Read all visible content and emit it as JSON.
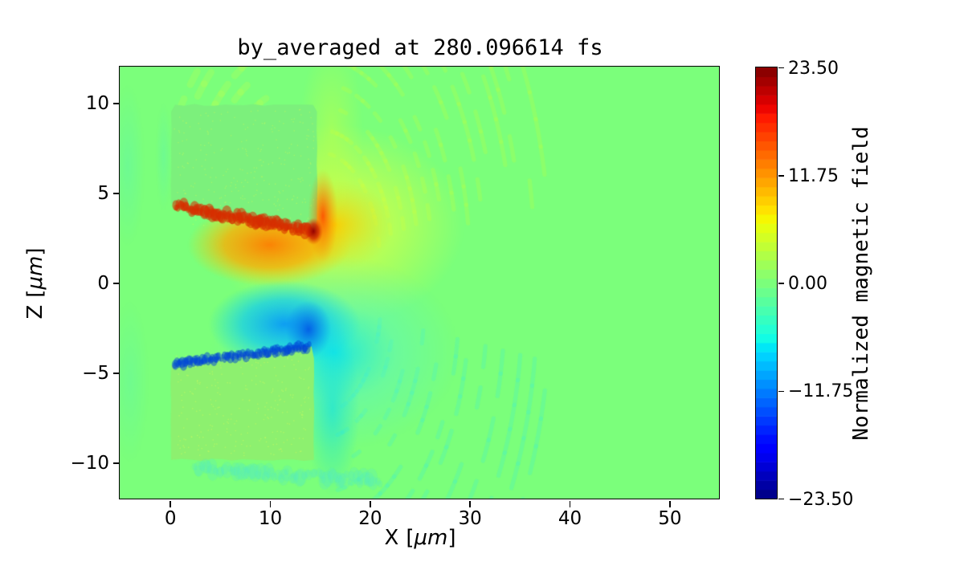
{
  "figure": {
    "title": "by_averaged at 280.096614 fs",
    "background_color": "#ffffff"
  },
  "chart_data": {
    "type": "heatmap",
    "title": "by_averaged at 280.096614 fs",
    "xlabel": {
      "name": "X",
      "open": "[",
      "unit": "μm",
      "close": "]",
      "text": "X [μm]"
    },
    "ylabel": {
      "name": "Z",
      "open": "[",
      "unit": "μm",
      "close": "]",
      "text": "Z [μm]"
    },
    "xlim": [
      -5,
      55
    ],
    "ylim": [
      -12,
      12
    ],
    "grid": false,
    "x_ticks": [
      {
        "value": 0,
        "label": "0"
      },
      {
        "value": 10,
        "label": "10"
      },
      {
        "value": 20,
        "label": "20"
      },
      {
        "value": 30,
        "label": "30"
      },
      {
        "value": 40,
        "label": "40"
      },
      {
        "value": 50,
        "label": "50"
      }
    ],
    "y_ticks": [
      {
        "value": 10,
        "label": "10"
      },
      {
        "value": 5,
        "label": "5"
      },
      {
        "value": 0,
        "label": "0"
      },
      {
        "value": -5,
        "label": "−5"
      },
      {
        "value": -10,
        "label": "−10"
      }
    ],
    "colorbar": {
      "label": "Normalized magnetic field",
      "vmin": -23.5,
      "vmax": 23.5,
      "levels": 47,
      "colormap": "jet",
      "ticks": [
        {
          "value": 23.5,
          "label": "23.50"
        },
        {
          "value": 11.75,
          "label": "11.75"
        },
        {
          "value": 0,
          "label": "0.00"
        },
        {
          "value": -11.75,
          "label": "−11.75"
        },
        {
          "value": -23.5,
          "label": "−23.50"
        }
      ]
    },
    "field_summary": {
      "background_value": 0,
      "peak_positive": {
        "value": 23.5,
        "x": 14.4,
        "z": 2.9
      },
      "peak_negative": {
        "value": -23.5,
        "x": 13.9,
        "z": -2.6
      },
      "upper_target_block": {
        "x_range": [
          0,
          14.7
        ],
        "z_range": [
          2.8,
          9.9
        ],
        "value": "≈0"
      },
      "lower_target_block": {
        "x_range": [
          0,
          14.4
        ],
        "z_range": [
          -9.85,
          -3.5
        ],
        "value": "≈0"
      },
      "description": "Averaged By magnetic field of a laser–target interaction: a strong positive (red/orange) lobe between z≈0.5–4.5 along the lower edge of the upper block, a strong negative (blue/cyan) lobe between z≈−0.5–−4 along the upper edge of the lower block, both peaking near the block tips at x≈14–15 μm, with faint ripple arcs radiating to the right and uniform ≈0 (green) background elsewhere."
    },
    "render": {
      "seed": 42,
      "background": "rgb(123,255,123)",
      "layers": [
        {
          "kind": "arcs",
          "name": "upper-right-ripples",
          "cx": 15,
          "cz": 1.2,
          "r0": 6,
          "r1": 23,
          "count": 14,
          "th0": 8,
          "th1": 80,
          "lw": 0.3,
          "color": "rgba(186,255,70,0.28)"
        },
        {
          "kind": "arcs",
          "name": "lower-right-ripples",
          "cx": 15,
          "cz": -1.2,
          "r0": 6,
          "r1": 23,
          "count": 12,
          "th0": -80,
          "th1": -8,
          "lw": 0.3,
          "color": "rgba(70,240,200,0.28)"
        },
        {
          "kind": "arcs",
          "name": "upper-left-wisps",
          "cx": 13,
          "cz": 1.5,
          "r0": 9.5,
          "r1": 14.5,
          "count": 5,
          "th0": 95,
          "th1": 150,
          "lw": 0.5,
          "color": "rgba(190,255,75,0.25)"
        },
        {
          "kind": "radial",
          "name": "left-edge-streak-upper",
          "cx": -4.2,
          "cz": 6.5,
          "rx": 1.7,
          "rz": 4.5,
          "stops": [
            [
              0,
              "rgba(80,240,200,0.30)"
            ],
            [
              1,
              "rgba(80,240,200,0)"
            ]
          ]
        },
        {
          "kind": "radial",
          "name": "left-of-block-streak",
          "cx": -0.6,
          "cz": 7,
          "rx": 0.8,
          "rz": 3,
          "stops": [
            [
              0,
              "rgba(80,240,200,0.28)"
            ],
            [
              1,
              "rgba(80,240,200,0)"
            ]
          ]
        },
        {
          "kind": "radial",
          "name": "left-edge-streak-lower",
          "cx": -4,
          "cz": -5.5,
          "rx": 1.9,
          "rz": 4.5,
          "stops": [
            [
              0,
              "rgba(80,240,200,0.25)"
            ],
            [
              1,
              "rgba(80,240,200,0)"
            ]
          ]
        },
        {
          "kind": "radial",
          "name": "positive-fan",
          "cx": 16.5,
          "cz": 3.2,
          "rx": 13,
          "rz": 5.6,
          "stops": [
            [
              0,
              "rgba(255,205,0,0.95)"
            ],
            [
              0.45,
              "rgba(228,255,60,0.55)"
            ],
            [
              1,
              "rgba(228,255,60,0)"
            ]
          ]
        },
        {
          "kind": "radial",
          "name": "positive-plume-up",
          "cx": 16.2,
          "cz": 8.5,
          "rx": 3.2,
          "rz": 4.8,
          "stops": [
            [
              0,
              "rgba(205,255,60,0.45)"
            ],
            [
              1,
              "rgba(205,255,60,0)"
            ]
          ]
        },
        {
          "kind": "radial",
          "name": "negative-fan",
          "cx": 16.5,
          "cz": -3.9,
          "rx": 12.5,
          "rz": 5.4,
          "stops": [
            [
              0,
              "rgba(0,225,250,0.80)"
            ],
            [
              0.5,
              "rgba(90,245,195,0.45)"
            ],
            [
              1,
              "rgba(90,245,195,0)"
            ]
          ]
        },
        {
          "kind": "radial",
          "name": "cyan-plume-down",
          "cx": 16.3,
          "cz": -7,
          "rx": 2.7,
          "rz": 4.8,
          "stops": [
            [
              0,
              "rgba(0,220,240,0.55)"
            ],
            [
              1,
              "rgba(0,220,240,0)"
            ]
          ]
        },
        {
          "kind": "radial",
          "name": "orange-core",
          "cx": 10,
          "cz": 2.1,
          "rx": 8.2,
          "rz": 2.3,
          "stops": [
            [
              0,
              "rgba(255,125,0,0.95)"
            ],
            [
              0.55,
              "rgba(255,170,0,0.75)"
            ],
            [
              1,
              "rgba(255,205,0,0)"
            ]
          ]
        },
        {
          "kind": "radial",
          "name": "blue-core",
          "cx": 11.5,
          "cz": -2.3,
          "rx": 7.6,
          "rz": 2.4,
          "stops": [
            [
              0,
              "rgba(0,145,255,0.88)"
            ],
            [
              0.55,
              "rgba(0,195,255,0.6)"
            ],
            [
              1,
              "rgba(0,215,255,0)"
            ]
          ]
        },
        {
          "kind": "radial",
          "name": "deep-blue-spot",
          "cx": 13.9,
          "cz": -2.6,
          "rx": 2.3,
          "rz": 1.6,
          "stops": [
            [
              0,
              "rgba(0,80,230,0.85)"
            ],
            [
              1,
              "rgba(0,120,240,0)"
            ]
          ]
        },
        {
          "kind": "poly",
          "name": "upper-target-block",
          "fill": "rgb(124,240,124)",
          "rough": 0.12,
          "points": [
            [
              0.15,
              4.4
            ],
            [
              0.15,
              9.5
            ],
            [
              0.55,
              9.88
            ],
            [
              14.35,
              9.88
            ],
            [
              14.75,
              9.5
            ],
            [
              14.75,
              3.5
            ],
            [
              14.55,
              2.78
            ],
            [
              10,
              3.28
            ],
            [
              5,
              3.85
            ]
          ]
        },
        {
          "kind": "poly",
          "name": "lower-target-block",
          "fill": "rgb(141,240,111)",
          "rough": 0.12,
          "points": [
            [
              0.15,
              -4.6
            ],
            [
              5,
              -4.15
            ],
            [
              10,
              -3.8
            ],
            [
              14.2,
              -3.55
            ],
            [
              14.45,
              -4.2
            ],
            [
              14.45,
              -9.85
            ],
            [
              0.15,
              -9.85
            ]
          ]
        },
        {
          "kind": "speckle",
          "name": "upper-block-speckle",
          "x0": 0.4,
          "z0": 3.2,
          "x1": 14.4,
          "z1": 9.7,
          "count": 260,
          "size": 1.4,
          "color": "rgba(210,255,90,0.4)"
        },
        {
          "kind": "speckle",
          "name": "lower-block-speckle",
          "x0": 0.4,
          "z0": -9.6,
          "x1": 14,
          "z1": -4,
          "count": 260,
          "size": 1.4,
          "color": "rgba(215,255,95,0.45)"
        },
        {
          "kind": "ridge",
          "name": "red-filament",
          "x0": 0.6,
          "z0": 4.28,
          "x1": 14.15,
          "z1": 2.88,
          "width": 0.36,
          "jitter": 0.17,
          "count": 110,
          "color": "rgba(215,45,0,0.55)"
        },
        {
          "kind": "ridge",
          "name": "blue-filament",
          "x0": 0.5,
          "z0": -4.52,
          "x1": 13.95,
          "z1": -3.55,
          "width": 0.28,
          "jitter": 0.14,
          "count": 110,
          "color": "rgba(0,70,215,0.5)"
        },
        {
          "kind": "radial",
          "name": "hot-right-column",
          "cx": 15.35,
          "cz": 3.7,
          "rx": 1.5,
          "rz": 2.6,
          "stops": [
            [
              0,
              "rgba(255,75,0,0.9)"
            ],
            [
              1,
              "rgba(255,140,0,0)"
            ]
          ]
        },
        {
          "kind": "radial",
          "name": "dark-red-hotspot",
          "cx": 14.4,
          "cz": 2.85,
          "rx": 0.95,
          "rz": 0.75,
          "stops": [
            [
              0,
              "rgba(148,0,0,1)"
            ],
            [
              0.55,
              "rgba(205,35,0,0.8)"
            ],
            [
              1,
              "rgba(225,70,0,0)"
            ]
          ]
        },
        {
          "kind": "ridge",
          "name": "sub-block-teal-wisp",
          "x0": 2.5,
          "z0": -10.35,
          "x1": 21,
          "z1": -11,
          "width": 0.45,
          "jitter": 0.25,
          "count": 70,
          "color": "rgba(85,235,195,0.25)"
        }
      ]
    }
  }
}
